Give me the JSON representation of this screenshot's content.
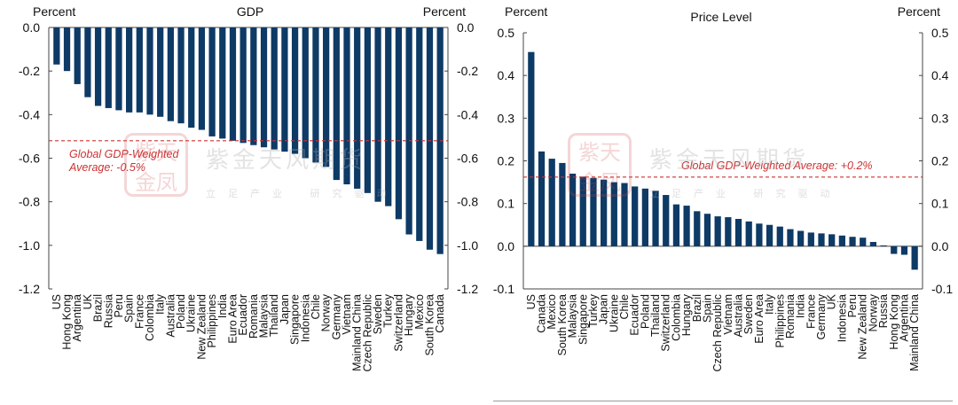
{
  "watermark": {
    "seal_text": "紫天金凤",
    "name": "紫金天风期货",
    "tagline": "立足产业 研究驱动"
  },
  "colors": {
    "bar": "#0e3a66",
    "reference_line": "#cc3333",
    "axis": "#444444"
  },
  "chart_data": [
    {
      "type": "bar",
      "title": "GDP",
      "ylabel_left": "Percent",
      "ylabel_right": "Percent",
      "ylim": [
        -1.2,
        0.0
      ],
      "yticks": [
        0.0,
        -0.2,
        -0.4,
        -0.6,
        -0.8,
        -1.0,
        -1.2
      ],
      "tick_labels": [
        "0.0",
        "-0.2",
        "-0.4",
        "-0.6",
        "-0.8",
        "-1.0",
        "-1.2"
      ],
      "categories": [
        "US",
        "Hong Kong",
        "Argentina",
        "UK",
        "Brazil",
        "Russia",
        "Peru",
        "Spain",
        "France",
        "Colombia",
        "Italy",
        "Australia",
        "Poland",
        "Ukraine",
        "New Zealand",
        "Philippines",
        "India",
        "Euro Area",
        "Ecuador",
        "Romania",
        "Malaysia",
        "Thailand",
        "Japan",
        "Singapore",
        "Indonesia",
        "Chile",
        "Norway",
        "Germany",
        "Vietnam",
        "Mainland China",
        "Czech Republic",
        "Sweden",
        "Turkey",
        "Switzerland",
        "Hungary",
        "Mexico",
        "South Korea",
        "Canada"
      ],
      "values": [
        -0.17,
        -0.2,
        -0.26,
        -0.32,
        -0.36,
        -0.37,
        -0.38,
        -0.39,
        -0.39,
        -0.4,
        -0.41,
        -0.43,
        -0.44,
        -0.46,
        -0.47,
        -0.5,
        -0.51,
        -0.52,
        -0.53,
        -0.54,
        -0.55,
        -0.56,
        -0.57,
        -0.58,
        -0.6,
        -0.62,
        -0.64,
        -0.7,
        -0.72,
        -0.74,
        -0.76,
        -0.8,
        -0.82,
        -0.88,
        -0.95,
        -0.98,
        -1.02,
        -1.04
      ],
      "reference_line": {
        "value": -0.52,
        "label_line1": "Global GDP-Weighted",
        "label_line2": "Average: -0.5%"
      },
      "grid": false,
      "legend": "none"
    },
    {
      "type": "bar",
      "title": "Price Level",
      "ylabel_left": "Percent",
      "ylabel_right": "Percent",
      "ylim": [
        -0.1,
        0.5
      ],
      "yticks": [
        0.5,
        0.4,
        0.3,
        0.2,
        0.1,
        0.0,
        -0.1
      ],
      "tick_labels": [
        "0.5",
        "0.4",
        "0.3",
        "0.2",
        "0.1",
        "0.0",
        "-0.1"
      ],
      "categories": [
        "US",
        "Canada",
        "Mexico",
        "South Korea",
        "Malaysia",
        "Singapore",
        "Turkey",
        "Japan",
        "Ukraine",
        "Chile",
        "Ecuador",
        "Poland",
        "Thailand",
        "Switzerland",
        "Colombia",
        "Hungary",
        "Brazil",
        "Spain",
        "Czech Republic",
        "Vietnam",
        "Australia",
        "Sweden",
        "Euro Area",
        "Italy",
        "Philippines",
        "Romania",
        "India",
        "France",
        "Germany",
        "UK",
        "Indonesia",
        "Peru",
        "New Zealand",
        "Norway",
        "Russia",
        "Hong Kong",
        "Argentina",
        "Mainland China"
      ],
      "values": [
        0.455,
        0.222,
        0.205,
        0.195,
        0.17,
        0.163,
        0.16,
        0.156,
        0.15,
        0.148,
        0.14,
        0.135,
        0.13,
        0.12,
        0.098,
        0.095,
        0.082,
        0.076,
        0.07,
        0.068,
        0.064,
        0.058,
        0.053,
        0.05,
        0.046,
        0.04,
        0.036,
        0.032,
        0.03,
        0.028,
        0.025,
        0.022,
        0.02,
        0.01,
        0.002,
        -0.018,
        -0.02,
        -0.055
      ],
      "reference_line": {
        "value": 0.162,
        "label_line1": "Global GDP-Weighted Average: +0.2%"
      },
      "grid": false,
      "legend": "none"
    }
  ]
}
